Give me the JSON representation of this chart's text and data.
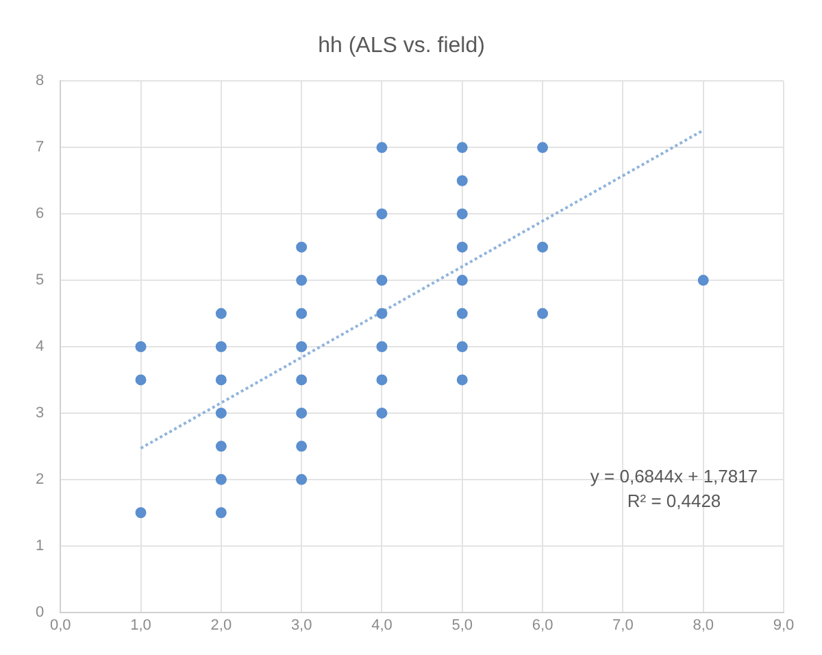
{
  "chart_data": {
    "type": "scatter",
    "title": "hh (ALS vs. field)",
    "series": [
      {
        "type": "scatter",
        "color": "#5b8fcf",
        "marker": "circle",
        "x": [
          1,
          1,
          1,
          2,
          2,
          2,
          2,
          2,
          2,
          2,
          3,
          3,
          3,
          3,
          3,
          3,
          3,
          3,
          4,
          4,
          4,
          4,
          4,
          4,
          4,
          5,
          5,
          5,
          5,
          5,
          5,
          5,
          5,
          6,
          6,
          6,
          8
        ],
        "values": [
          4,
          3.5,
          1.5,
          4.5,
          4,
          3.5,
          3,
          2.5,
          2,
          1.5,
          5.5,
          5,
          4.5,
          4,
          3.5,
          3,
          2.5,
          2,
          7,
          6,
          5,
          4.5,
          4,
          3.5,
          3,
          7,
          6.5,
          6,
          5.5,
          5,
          4.5,
          4,
          3.5,
          7,
          5.5,
          4.5,
          5
        ]
      },
      {
        "type": "line",
        "color": "#8fb4dc",
        "marker": "none",
        "line_style": "dotted",
        "x": [
          1,
          8
        ],
        "values": [
          2.47,
          7.26
        ]
      }
    ],
    "xlim": [
      0,
      9
    ],
    "xticks": [
      {
        "value": 0,
        "label": "0,0"
      },
      {
        "value": 1,
        "label": "1,0"
      },
      {
        "value": 2,
        "label": "2,0"
      },
      {
        "value": 3,
        "label": "3,0"
      },
      {
        "value": 4,
        "label": "4,0"
      },
      {
        "value": 5,
        "label": "5,0"
      },
      {
        "value": 6,
        "label": "6,0"
      },
      {
        "value": 7,
        "label": "7,0"
      },
      {
        "value": 8,
        "label": "8,0"
      },
      {
        "value": 9,
        "label": "9,0"
      }
    ],
    "ylim": [
      0,
      8
    ],
    "yticks": [
      0,
      1,
      2,
      3,
      4,
      5,
      6,
      7,
      8
    ],
    "grid": true,
    "legend": false,
    "annotations": [
      "y = 0,6844x + 1,7817",
      "R² = 0,4428"
    ]
  }
}
